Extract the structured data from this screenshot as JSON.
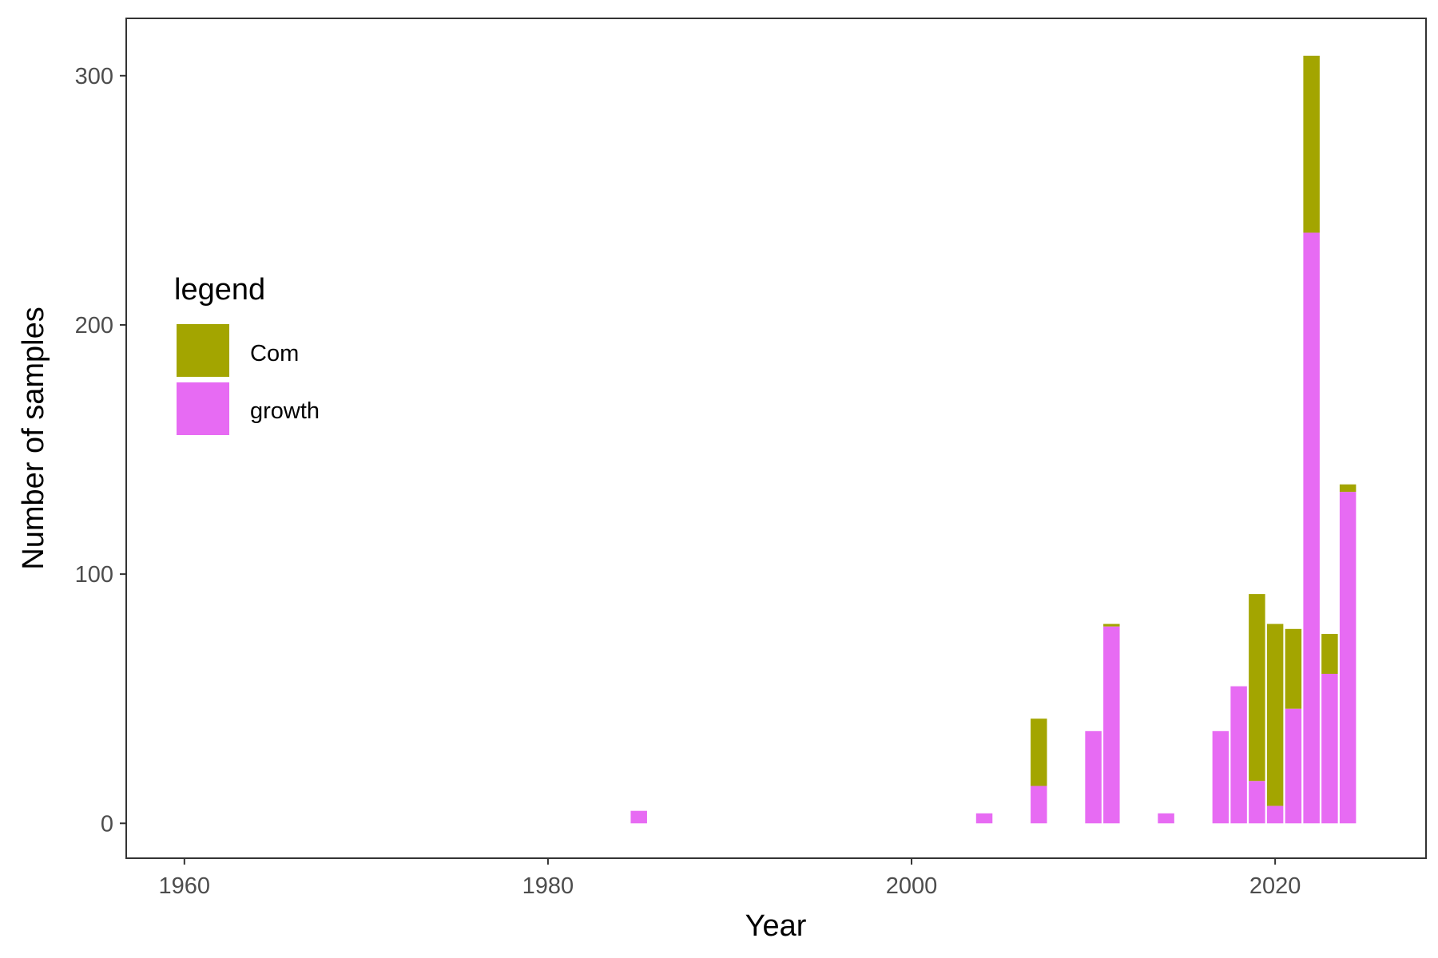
{
  "chart_data": {
    "type": "bar",
    "stacked": true,
    "xlabel": "Year",
    "ylabel": "Number of samples",
    "xlim": [
      1956.8,
      2028.3
    ],
    "ylim": [
      -14,
      323
    ],
    "x_ticks": [
      1960,
      1980,
      2000,
      2020
    ],
    "y_ticks": [
      0,
      100,
      200,
      300
    ],
    "grid": false,
    "legend": {
      "title": "legend",
      "position": "left",
      "entries": [
        {
          "label": "Com",
          "color": "#a3a500"
        },
        {
          "label": "growth",
          "color": "#e76bf3"
        }
      ]
    },
    "x": [
      1985,
      2004,
      2007,
      2010,
      2011,
      2014,
      2017,
      2018,
      2019,
      2020,
      2021,
      2022,
      2023,
      2024
    ],
    "series": [
      {
        "name": "growth",
        "color": "#e76bf3",
        "values": [
          5,
          4,
          15,
          37,
          79,
          4,
          37,
          55,
          17,
          7,
          46,
          237,
          60,
          133
        ]
      },
      {
        "name": "Com",
        "color": "#a3a500",
        "values": [
          0,
          0,
          27,
          0,
          1,
          0,
          0,
          0,
          75,
          73,
          32,
          71,
          16,
          3
        ]
      }
    ]
  }
}
